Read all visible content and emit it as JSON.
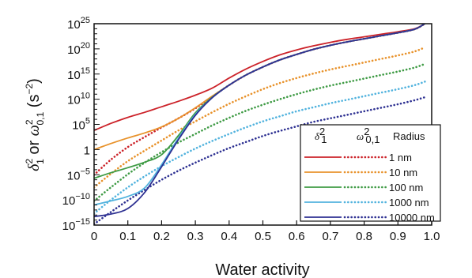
{
  "chart_data": {
    "type": "line",
    "title": "",
    "xlabel": "Water activity",
    "ylabel": {
      "delta": "δ",
      "delta_sup": "2",
      "delta_sub": "1",
      "or": " or ",
      "omega": "ω",
      "omega_sup": "2",
      "omega_sub": "0,1",
      "unit_open": " (s",
      "unit_sup": "−2",
      "unit_close": ")"
    },
    "xlim": [
      0,
      1.0
    ],
    "ylim_log10": [
      -15,
      25
    ],
    "y_scale": "log",
    "x_ticks": [
      "0",
      "0.1",
      "0.2",
      "0.3",
      "0.4",
      "0.5",
      "0.6",
      "0.7",
      "0.8",
      "0.9",
      "1.0"
    ],
    "y_ticks": [
      {
        "exp": -15,
        "base": "10",
        "sup": "−15",
        "plain": ""
      },
      {
        "exp": -10,
        "base": "10",
        "sup": "−10",
        "plain": ""
      },
      {
        "exp": -5,
        "base": "10",
        "sup": "−5",
        "plain": ""
      },
      {
        "exp": 0,
        "base": "",
        "sup": "",
        "plain": "1"
      },
      {
        "exp": 5,
        "base": "10",
        "sup": "5",
        "plain": ""
      },
      {
        "exp": 10,
        "base": "10",
        "sup": "10",
        "plain": ""
      },
      {
        "exp": 15,
        "base": "10",
        "sup": "15",
        "plain": ""
      },
      {
        "exp": 20,
        "base": "10",
        "sup": "20",
        "plain": ""
      },
      {
        "exp": 25,
        "base": "10",
        "sup": "25",
        "plain": ""
      }
    ],
    "grid": false,
    "legend": {
      "placement": "bottom-right",
      "col1_head": "δ",
      "col1_sup": "2",
      "col1_sub": "1",
      "col2_head": "ω",
      "col2_sup": "2",
      "col2_sub": "0,1",
      "col3_head": "Radius"
    },
    "series": [
      {
        "name": "1 nm",
        "color": "#cc2229",
        "solid": [
          [
            0,
            3.8
          ],
          [
            0.05,
            5.2
          ],
          [
            0.1,
            6.4
          ],
          [
            0.15,
            7.4
          ],
          [
            0.2,
            8.5
          ],
          [
            0.25,
            9.6
          ],
          [
            0.3,
            10.8
          ],
          [
            0.35,
            12.2
          ],
          [
            0.4,
            14.2
          ],
          [
            0.45,
            16.0
          ],
          [
            0.5,
            17.5
          ],
          [
            0.55,
            18.8
          ],
          [
            0.6,
            19.8
          ],
          [
            0.65,
            20.6
          ],
          [
            0.7,
            21.3
          ],
          [
            0.75,
            21.9
          ],
          [
            0.8,
            22.4
          ],
          [
            0.85,
            22.9
          ],
          [
            0.9,
            23.4
          ],
          [
            0.95,
            24.0
          ],
          [
            0.98,
            25.0
          ]
        ],
        "dotted": [
          [
            0,
            -5.0
          ],
          [
            0.05,
            -2.0
          ],
          [
            0.1,
            0.5
          ],
          [
            0.15,
            2.5
          ],
          [
            0.2,
            4.4
          ],
          [
            0.25,
            6.2
          ],
          [
            0.3,
            8.2
          ],
          [
            0.35,
            10.5
          ],
          [
            0.4,
            12.8
          ],
          [
            0.45,
            14.8
          ],
          [
            0.5,
            16.4
          ],
          [
            0.55,
            17.8
          ],
          [
            0.6,
            18.9
          ],
          [
            0.65,
            19.9
          ],
          [
            0.7,
            20.7
          ],
          [
            0.75,
            21.4
          ],
          [
            0.8,
            22.0
          ],
          [
            0.85,
            22.6
          ],
          [
            0.9,
            23.2
          ],
          [
            0.95,
            23.9
          ],
          [
            0.98,
            25.0
          ]
        ]
      },
      {
        "name": "10 nm",
        "color": "#e8922b",
        "solid": [
          [
            0,
            0.0
          ],
          [
            0.05,
            1.2
          ],
          [
            0.1,
            2.3
          ],
          [
            0.15,
            3.3
          ],
          [
            0.2,
            4.5
          ],
          [
            0.25,
            6.2
          ],
          [
            0.3,
            8.3
          ],
          [
            0.35,
            10.6
          ],
          [
            0.4,
            12.8
          ],
          [
            0.45,
            14.8
          ],
          [
            0.5,
            16.4
          ],
          [
            0.55,
            17.8
          ],
          [
            0.6,
            18.9
          ],
          [
            0.65,
            19.9
          ],
          [
            0.7,
            20.7
          ],
          [
            0.75,
            21.4
          ],
          [
            0.8,
            22.0
          ],
          [
            0.85,
            22.6
          ],
          [
            0.9,
            23.2
          ],
          [
            0.95,
            23.9
          ],
          [
            0.98,
            25.0
          ]
        ],
        "dotted": [
          [
            0,
            -7.5
          ],
          [
            0.05,
            -4.8
          ],
          [
            0.1,
            -2.3
          ],
          [
            0.15,
            -0.2
          ],
          [
            0.2,
            1.8
          ],
          [
            0.25,
            3.8
          ],
          [
            0.3,
            5.6
          ],
          [
            0.35,
            7.4
          ],
          [
            0.4,
            9.1
          ],
          [
            0.45,
            10.6
          ],
          [
            0.5,
            12.0
          ],
          [
            0.55,
            13.2
          ],
          [
            0.6,
            14.2
          ],
          [
            0.65,
            15.1
          ],
          [
            0.7,
            15.9
          ],
          [
            0.75,
            16.6
          ],
          [
            0.8,
            17.3
          ],
          [
            0.85,
            18.0
          ],
          [
            0.9,
            18.7
          ],
          [
            0.95,
            19.5
          ],
          [
            0.98,
            20.3
          ]
        ]
      },
      {
        "name": "100 nm",
        "color": "#3f9b45",
        "solid": [
          [
            0,
            -5.7
          ],
          [
            0.05,
            -4.6
          ],
          [
            0.1,
            -3.6
          ],
          [
            0.15,
            -2.5
          ],
          [
            0.2,
            -1.0
          ],
          [
            0.25,
            2.8
          ],
          [
            0.3,
            7.3
          ],
          [
            0.35,
            10.4
          ],
          [
            0.4,
            12.8
          ],
          [
            0.45,
            14.8
          ],
          [
            0.5,
            16.4
          ],
          [
            0.55,
            17.8
          ],
          [
            0.6,
            18.9
          ],
          [
            0.65,
            19.9
          ],
          [
            0.7,
            20.7
          ],
          [
            0.75,
            21.4
          ],
          [
            0.8,
            22.0
          ],
          [
            0.85,
            22.6
          ],
          [
            0.9,
            23.2
          ],
          [
            0.95,
            23.9
          ],
          [
            0.98,
            25.0
          ]
        ],
        "dotted": [
          [
            0,
            -10.2
          ],
          [
            0.05,
            -7.5
          ],
          [
            0.1,
            -4.9
          ],
          [
            0.15,
            -2.6
          ],
          [
            0.2,
            -0.5
          ],
          [
            0.25,
            1.4
          ],
          [
            0.3,
            3.1
          ],
          [
            0.35,
            4.8
          ],
          [
            0.4,
            6.3
          ],
          [
            0.45,
            7.7
          ],
          [
            0.5,
            8.9
          ],
          [
            0.55,
            10.0
          ],
          [
            0.6,
            11.0
          ],
          [
            0.65,
            11.9
          ],
          [
            0.7,
            12.7
          ],
          [
            0.75,
            13.4
          ],
          [
            0.8,
            14.1
          ],
          [
            0.85,
            14.8
          ],
          [
            0.9,
            15.5
          ],
          [
            0.95,
            16.3
          ],
          [
            0.98,
            17.0
          ]
        ]
      },
      {
        "name": "1000 nm",
        "color": "#52b3de",
        "solid": [
          [
            0,
            -11.0
          ],
          [
            0.05,
            -10.2
          ],
          [
            0.1,
            -9.3
          ],
          [
            0.15,
            -7.6
          ],
          [
            0.2,
            -3.0
          ],
          [
            0.25,
            2.3
          ],
          [
            0.3,
            7.0
          ],
          [
            0.35,
            10.3
          ],
          [
            0.4,
            12.8
          ],
          [
            0.45,
            14.8
          ],
          [
            0.5,
            16.4
          ],
          [
            0.55,
            17.8
          ],
          [
            0.6,
            18.9
          ],
          [
            0.65,
            19.9
          ],
          [
            0.7,
            20.7
          ],
          [
            0.75,
            21.4
          ],
          [
            0.8,
            22.0
          ],
          [
            0.85,
            22.6
          ],
          [
            0.9,
            23.2
          ],
          [
            0.95,
            23.9
          ],
          [
            0.98,
            25.0
          ]
        ],
        "dotted": [
          [
            0,
            -12.7
          ],
          [
            0.05,
            -10.0
          ],
          [
            0.1,
            -7.5
          ],
          [
            0.15,
            -5.3
          ],
          [
            0.2,
            -3.3
          ],
          [
            0.25,
            -1.5
          ],
          [
            0.3,
            0.2
          ],
          [
            0.35,
            1.7
          ],
          [
            0.4,
            3.1
          ],
          [
            0.45,
            4.4
          ],
          [
            0.5,
            5.6
          ],
          [
            0.55,
            6.6
          ],
          [
            0.6,
            7.6
          ],
          [
            0.65,
            8.4
          ],
          [
            0.7,
            9.2
          ],
          [
            0.75,
            9.9
          ],
          [
            0.8,
            10.6
          ],
          [
            0.85,
            11.3
          ],
          [
            0.9,
            12.0
          ],
          [
            0.95,
            12.8
          ],
          [
            0.98,
            13.5
          ]
        ]
      },
      {
        "name": "10000 nm",
        "color": "#2e3192",
        "solid": [
          [
            0,
            -13.3
          ],
          [
            0.05,
            -12.8
          ],
          [
            0.1,
            -11.7
          ],
          [
            0.15,
            -8.5
          ],
          [
            0.2,
            -3.4
          ],
          [
            0.25,
            2.0
          ],
          [
            0.3,
            6.8
          ],
          [
            0.35,
            10.3
          ],
          [
            0.4,
            12.8
          ],
          [
            0.45,
            14.8
          ],
          [
            0.5,
            16.4
          ],
          [
            0.55,
            17.8
          ],
          [
            0.6,
            18.9
          ],
          [
            0.65,
            19.9
          ],
          [
            0.7,
            20.7
          ],
          [
            0.75,
            21.4
          ],
          [
            0.8,
            22.0
          ],
          [
            0.85,
            22.6
          ],
          [
            0.9,
            23.2
          ],
          [
            0.95,
            23.9
          ],
          [
            0.98,
            25.0
          ]
        ],
        "dotted": [
          [
            0,
            -14.8
          ],
          [
            0.05,
            -12.4
          ],
          [
            0.1,
            -10.1
          ],
          [
            0.15,
            -8.0
          ],
          [
            0.2,
            -6.0
          ],
          [
            0.25,
            -4.2
          ],
          [
            0.3,
            -2.6
          ],
          [
            0.35,
            -1.1
          ],
          [
            0.4,
            0.3
          ],
          [
            0.45,
            1.5
          ],
          [
            0.5,
            2.7
          ],
          [
            0.55,
            3.7
          ],
          [
            0.6,
            4.6
          ],
          [
            0.65,
            5.5
          ],
          [
            0.7,
            6.2
          ],
          [
            0.75,
            6.9
          ],
          [
            0.8,
            7.6
          ],
          [
            0.85,
            8.3
          ],
          [
            0.9,
            9.0
          ],
          [
            0.95,
            9.8
          ],
          [
            0.98,
            10.4
          ]
        ]
      }
    ]
  }
}
